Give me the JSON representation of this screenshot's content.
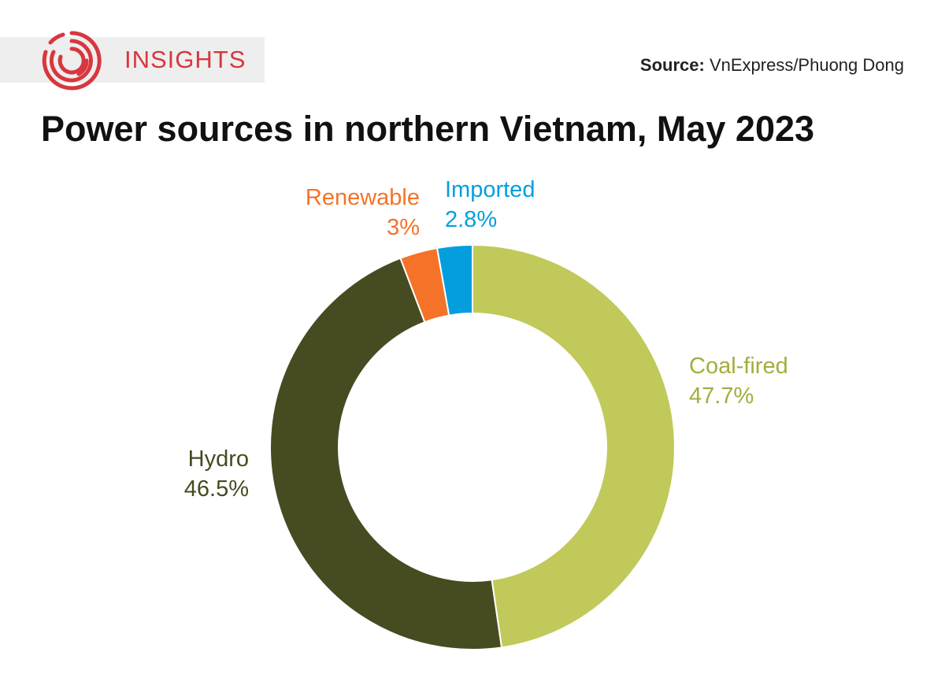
{
  "brand": {
    "name": "INSIGHTS",
    "logo_icon": "insights-swirl-logo-icon",
    "color": "#d7373e"
  },
  "source": {
    "label": "Source:",
    "text": "VnExpress/Phuong Dong"
  },
  "chart_data": {
    "type": "pie",
    "title": "Power sources in northern Vietnam, May 2023",
    "donut": true,
    "slices": [
      {
        "label": "Coal-fired",
        "value": 47.7,
        "value_label": "47.7%",
        "color": "#c0c95a",
        "label_color": "#a3ad3e"
      },
      {
        "label": "Hydro",
        "value": 46.5,
        "value_label": "46.5%",
        "color": "#464b21",
        "label_color": "#464b21"
      },
      {
        "label": "Renewable",
        "value": 3.0,
        "value_label": "3%",
        "color": "#f47328",
        "label_color": "#f47328"
      },
      {
        "label": "Imported",
        "value": 2.8,
        "value_label": "2.8%",
        "color": "#049ede",
        "label_color": "#049ede"
      }
    ]
  }
}
